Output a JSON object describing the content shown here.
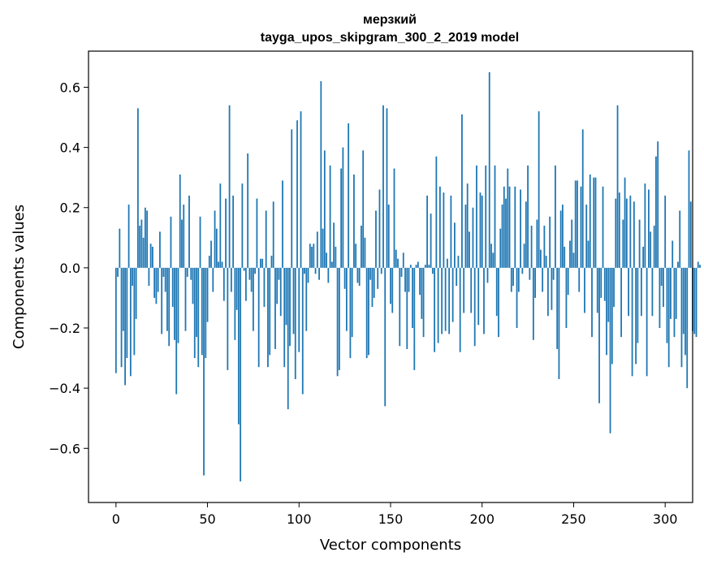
{
  "chart_data": {
    "type": "bar",
    "title_line1": "мерзкий",
    "title_line2": "tayga_upos_skipgram_300_2_2019 model",
    "xlabel": "Vector components",
    "ylabel": "Components values",
    "xlim": [
      -15,
      315
    ],
    "ylim": [
      -0.78,
      0.72
    ],
    "xticks": [
      0,
      50,
      100,
      150,
      200,
      250,
      300
    ],
    "xtick_labels": [
      "0",
      "50",
      "100",
      "150",
      "200",
      "250",
      "300"
    ],
    "yticks": [
      -0.6,
      -0.4,
      -0.2,
      0.0,
      0.2,
      0.4,
      0.6
    ],
    "ytick_labels": [
      "−0.6",
      "−0.4",
      "−0.2",
      "0.0",
      "0.2",
      "0.4",
      "0.6"
    ],
    "bar_color": "#1f77b4",
    "values": [
      -0.35,
      -0.03,
      0.13,
      -0.33,
      -0.21,
      -0.39,
      -0.3,
      0.21,
      -0.36,
      -0.06,
      -0.29,
      -0.17,
      0.53,
      0.14,
      0.16,
      0.1,
      0.2,
      0.19,
      -0.06,
      0.08,
      0.07,
      -0.1,
      -0.12,
      -0.08,
      0.12,
      -0.22,
      -0.03,
      -0.08,
      -0.21,
      -0.26,
      0.17,
      -0.13,
      -0.24,
      -0.42,
      -0.25,
      0.31,
      0.16,
      0.21,
      -0.21,
      -0.03,
      0.24,
      -0.04,
      -0.12,
      -0.3,
      -0.23,
      -0.33,
      0.17,
      -0.29,
      -0.69,
      -0.3,
      -0.18,
      0.04,
      0.09,
      -0.08,
      0.19,
      0.13,
      0.02,
      0.28,
      0.02,
      -0.11,
      0.23,
      -0.34,
      0.54,
      -0.08,
      0.24,
      -0.24,
      -0.14,
      -0.52,
      -0.71,
      0.28,
      -0.01,
      -0.11,
      0.38,
      -0.04,
      -0.08,
      -0.21,
      -0.02,
      0.23,
      -0.33,
      0.03,
      0.03,
      -0.13,
      0.19,
      -0.33,
      -0.29,
      0.04,
      0.22,
      -0.27,
      -0.12,
      -0.04,
      -0.16,
      0.29,
      -0.33,
      -0.19,
      -0.47,
      -0.26,
      0.46,
      -0.22,
      -0.37,
      0.49,
      -0.28,
      0.52,
      -0.42,
      -0.02,
      -0.21,
      -0.05,
      0.08,
      0.07,
      0.08,
      -0.02,
      0.12,
      -0.04,
      0.62,
      0.13,
      0.39,
      0.05,
      -0.05,
      0.34,
      0.02,
      0.15,
      0.07,
      -0.36,
      -0.34,
      0.33,
      0.4,
      -0.07,
      -0.21,
      0.48,
      -0.3,
      -0.23,
      0.31,
      0.08,
      -0.05,
      -0.06,
      0.14,
      0.39,
      0.1,
      -0.3,
      -0.29,
      -0.04,
      -0.13,
      -0.1,
      0.19,
      -0.07,
      0.26,
      -0.02,
      0.54,
      -0.46,
      0.53,
      0.21,
      -0.12,
      -0.15,
      0.33,
      0.06,
      0.03,
      -0.26,
      -0.03,
      0.05,
      -0.08,
      -0.27,
      -0.08,
      0.01,
      -0.2,
      -0.34,
      0.01,
      0.02,
      -0.09,
      -0.17,
      -0.23,
      0.01,
      0.24,
      0.01,
      0.18,
      -0.02,
      -0.28,
      0.37,
      -0.25,
      0.27,
      -0.22,
      0.25,
      -0.21,
      0.03,
      -0.22,
      0.24,
      -0.18,
      0.15,
      -0.06,
      0.04,
      -0.28,
      0.51,
      -0.15,
      0.21,
      0.28,
      0.12,
      -0.15,
      0.2,
      -0.26,
      0.34,
      -0.19,
      0.25,
      0.24,
      -0.22,
      0.34,
      -0.05,
      0.65,
      0.08,
      0.05,
      0.34,
      -0.16,
      -0.23,
      0.13,
      0.21,
      0.27,
      0.23,
      0.33,
      0.27,
      -0.08,
      -0.06,
      0.27,
      -0.2,
      -0.08,
      0.26,
      -0.02,
      0.08,
      0.22,
      0.34,
      -0.04,
      0.14,
      -0.24,
      -0.1,
      0.16,
      0.52,
      0.06,
      -0.08,
      0.14,
      0.04,
      -0.16,
      0.17,
      -0.14,
      -0.04,
      0.34,
      -0.27,
      -0.37,
      0.19,
      0.21,
      0.07,
      -0.2,
      -0.09,
      0.09,
      0.16,
      0.05,
      0.29,
      0.29,
      -0.08,
      0.27,
      0.46,
      -0.15,
      0.21,
      0.09,
      0.31,
      -0.23,
      0.3,
      0.3,
      -0.15,
      -0.45,
      -0.1,
      0.27,
      -0.11,
      -0.29,
      -0.18,
      -0.55,
      -0.32,
      -0.13,
      0.23,
      0.54,
      0.25,
      -0.23,
      0.16,
      0.3,
      0.23,
      -0.16,
      0.24,
      -0.36,
      0.22,
      -0.32,
      -0.25,
      0.16,
      -0.16,
      0.07,
      0.28,
      -0.36,
      0.26,
      0.12,
      -0.16,
      0.14,
      0.37,
      0.42,
      -0.2,
      -0.06,
      -0.13,
      0.24,
      -0.25,
      -0.33,
      -0.17,
      0.09,
      -0.23,
      -0.17,
      0.02,
      0.19,
      -0.33,
      -0.22,
      -0.29,
      -0.4,
      0.39,
      0.22,
      -0.21,
      -0.22,
      -0.23,
      0.02,
      0.01
    ]
  }
}
